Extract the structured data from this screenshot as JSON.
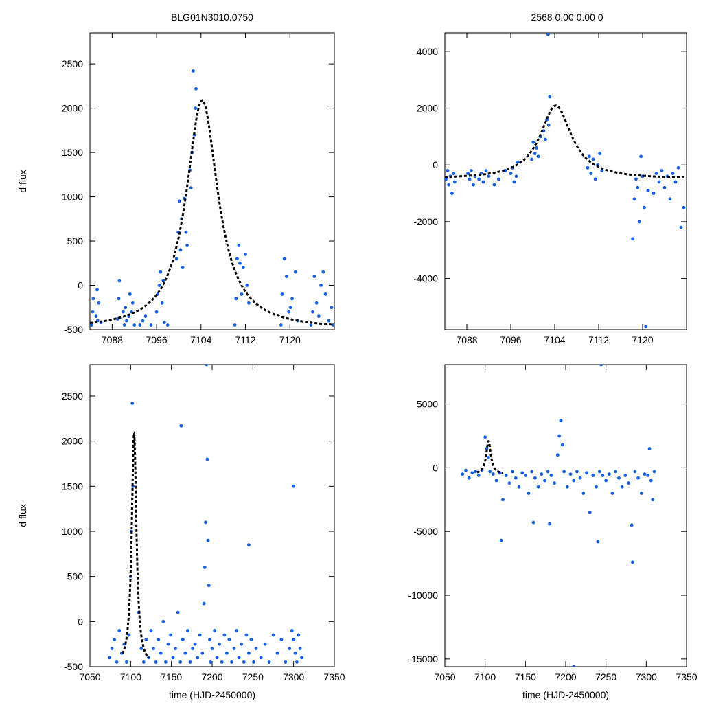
{
  "chart_data": {
    "type": "scatter",
    "point_color": "#1461e6",
    "model_color": "#000000",
    "titles": {
      "left": "BLG01N3010.0750",
      "right": "2568   0.00   0.00   0"
    },
    "model": {
      "t0": 7104.2,
      "peak": 2090,
      "baseline": -500,
      "tau": 3.2
    },
    "panels": [
      {
        "id": "top-left",
        "xlim": [
          7084,
          7128
        ],
        "ylim": [
          -500,
          2850
        ],
        "xticks": [
          7088,
          7096,
          7104,
          7112,
          7120
        ],
        "yticks": [
          -500,
          0,
          500,
          1000,
          1500,
          2000,
          2500
        ],
        "ylabel": "d flux",
        "xlabel": "",
        "x": [
          7084.3,
          7084.5,
          7084.6,
          7085.1,
          7085.3,
          7085.4,
          7085.6,
          7086.0,
          7089.0,
          7089.2,
          7089.3,
          7090.0,
          7090.2,
          7090.4,
          7090.6,
          7091.0,
          7091.2,
          7091.5,
          7091.7,
          7092.0,
          7093.0,
          7093.5,
          7094.0,
          7095.0,
          7096.0,
          7096.2,
          7096.5,
          7096.7,
          7097.0,
          7097.2,
          7097.4,
          7098.0,
          7099.6,
          7099.9,
          7100.1,
          7100.3,
          7100.5,
          7100.7,
          7101.0,
          7101.3,
          7101.5,
          7102.0,
          7102.2,
          7102.4,
          7102.6,
          7102.8,
          7103.0,
          7103.1,
          7110.1,
          7110.3,
          7110.5,
          7110.8,
          7111.0,
          7111.3,
          7111.6,
          7112.0,
          7112.3,
          7112.6,
          7118.4,
          7118.6,
          7119.0,
          7119.4,
          7119.8,
          7120.1,
          7120.4,
          7121.0,
          7121.4,
          7123.8,
          7124.1,
          7124.4,
          7124.8,
          7125.2,
          7125.6,
          7126.0,
          7126.4,
          7127.0,
          7127.5,
          7127.8
        ],
        "y": [
          -450,
          -300,
          -150,
          -350,
          -50,
          -400,
          -200,
          -420,
          -380,
          -150,
          50,
          -300,
          -450,
          -250,
          -400,
          -350,
          -100,
          -300,
          -200,
          -450,
          -450,
          -400,
          -350,
          -450,
          -300,
          -100,
          0,
          150,
          -200,
          50,
          -420,
          -450,
          300,
          600,
          950,
          400,
          750,
          200,
          980,
          600,
          450,
          1300,
          1100,
          1500,
          2420,
          1700,
          2000,
          2220,
          -450,
          -150,
          300,
          450,
          250,
          -100,
          200,
          350,
          0,
          -200,
          -450,
          -100,
          300,
          100,
          -300,
          -250,
          -150,
          150,
          -400,
          -450,
          -300,
          100,
          -200,
          -350,
          0,
          150,
          -100,
          -400,
          -250,
          -450
        ]
      },
      {
        "id": "top-right",
        "xlim": [
          7084,
          7128
        ],
        "ylim": [
          -5800,
          4650
        ],
        "xticks": [
          7088,
          7096,
          7104,
          7112,
          7120
        ],
        "yticks": [
          -4000,
          -2000,
          0,
          2000,
          4000
        ],
        "ylabel": "",
        "xlabel": "",
        "x": [
          7084.2,
          7084.5,
          7084.7,
          7085.0,
          7085.3,
          7085.6,
          7085.8,
          7088.2,
          7088.5,
          7088.8,
          7089.2,
          7089.5,
          7090.2,
          7090.6,
          7091.0,
          7091.5,
          7092.0,
          7093.0,
          7093.8,
          7095.0,
          7096.0,
          7096.3,
          7096.6,
          7097.0,
          7097.3,
          7099.8,
          7100.1,
          7100.4,
          7100.7,
          7101.0,
          7101.4,
          7102.0,
          7102.3,
          7102.6,
          7102.9,
          7103.1,
          7102.8,
          7110.0,
          7110.3,
          7110.6,
          7111.0,
          7111.4,
          7111.8,
          7112.2,
          7112.6,
          7118.2,
          7118.5,
          7118.8,
          7119.1,
          7119.4,
          7119.7,
          7120.0,
          7120.3,
          7120.6,
          7121.0,
          7122.0,
          7122.5,
          7123.0,
          7123.5,
          7124.0,
          7124.5,
          7125.0,
          7125.5,
          7126.0,
          7126.5,
          7127.0,
          7127.5
        ],
        "y": [
          -500,
          -200,
          -700,
          -400,
          -1000,
          -300,
          -600,
          -300,
          -500,
          -200,
          -700,
          -400,
          -500,
          -300,
          -600,
          -200,
          -400,
          -700,
          -500,
          -200,
          -300,
          -100,
          -600,
          -400,
          100,
          200,
          800,
          400,
          600,
          300,
          1000,
          1200,
          900,
          1600,
          1400,
          2400,
          4600,
          -100,
          300,
          -300,
          200,
          -500,
          0,
          400,
          -200,
          -2600,
          -1200,
          -500,
          -800,
          -2000,
          300,
          -400,
          -1500,
          -5700,
          -900,
          -1000,
          -300,
          -600,
          -200,
          -800,
          -400,
          -1200,
          -300,
          -600,
          -100,
          -2200,
          -1500
        ]
      },
      {
        "id": "bottom-left",
        "xlim": [
          7050,
          7350
        ],
        "ylim": [
          -500,
          2850
        ],
        "xticks": [
          7050,
          7100,
          7150,
          7200,
          7250,
          7300,
          7350
        ],
        "yticks": [
          -500,
          0,
          500,
          1000,
          1500,
          2000,
          2500
        ],
        "ylabel": "d flux",
        "xlabel": "time (HJD-2450000)",
        "x": [
          7074,
          7077,
          7080,
          7083,
          7086,
          7089,
          7092,
          7095,
          7098,
          7100,
          7101,
          7102,
          7103,
          7110,
          7113,
          7116,
          7119,
          7122,
          7125,
          7128,
          7131,
          7134,
          7137,
          7140,
          7143,
          7146,
          7149,
          7152,
          7155,
          7158,
          7161,
          7164,
          7167,
          7170,
          7173,
          7176,
          7179,
          7182,
          7185,
          7188,
          7190,
          7191,
          7192,
          7193,
          7194,
          7195,
          7196,
          7197,
          7198,
          7200,
          7203,
          7206,
          7209,
          7212,
          7215,
          7218,
          7221,
          7224,
          7227,
          7230,
          7233,
          7236,
          7239,
          7242,
          7245,
          7248,
          7251,
          7254,
          7260,
          7265,
          7270,
          7275,
          7280,
          7285,
          7290,
          7295,
          7298,
          7300,
          7302,
          7304,
          7306,
          7308,
          7310,
          7162,
          7245,
          7300
        ],
        "y": [
          -400,
          -300,
          -200,
          -450,
          -100,
          -350,
          -250,
          -450,
          -150,
          500,
          1000,
          2420,
          1500,
          100,
          -300,
          -450,
          -200,
          -400,
          -100,
          -300,
          -450,
          -200,
          -350,
          0,
          -450,
          -250,
          -150,
          -400,
          -300,
          100,
          -450,
          -200,
          -350,
          -100,
          -450,
          -300,
          -250,
          -400,
          -150,
          -350,
          200,
          600,
          1100,
          2850,
          1800,
          900,
          400,
          -200,
          -450,
          -300,
          -100,
          -400,
          -250,
          -450,
          -150,
          -350,
          -200,
          -450,
          -300,
          -100,
          -400,
          -250,
          -450,
          -150,
          -350,
          -200,
          -450,
          -300,
          -400,
          -250,
          -450,
          -150,
          -350,
          -200,
          -450,
          -300,
          -100,
          -200,
          -350,
          -450,
          -150,
          -300,
          -400,
          2170,
          850,
          1500
        ]
      },
      {
        "id": "bottom-right",
        "xlim": [
          7050,
          7350
        ],
        "ylim": [
          -15600,
          8100
        ],
        "xticks": [
          7050,
          7100,
          7150,
          7200,
          7250,
          7300,
          7350
        ],
        "yticks": [
          -15000,
          -10000,
          -5000,
          0,
          5000
        ],
        "ylabel": "",
        "xlabel": "time (HJD-2450000)",
        "x": [
          7072,
          7076,
          7080,
          7084,
          7088,
          7092,
          7096,
          7100,
          7102,
          7104,
          7106,
          7110,
          7114,
          7118,
          7122,
          7126,
          7130,
          7134,
          7138,
          7142,
          7146,
          7150,
          7154,
          7158,
          7162,
          7166,
          7170,
          7174,
          7178,
          7182,
          7186,
          7190,
          7192,
          7194,
          7196,
          7198,
          7202,
          7206,
          7210,
          7214,
          7218,
          7222,
          7226,
          7230,
          7234,
          7238,
          7242,
          7244,
          7246,
          7250,
          7254,
          7258,
          7262,
          7266,
          7270,
          7274,
          7278,
          7282,
          7286,
          7290,
          7294,
          7298,
          7302,
          7304,
          7306,
          7308,
          7310,
          7120,
          7160,
          7180,
          7210,
          7240,
          7283
        ],
        "y": [
          -500,
          -200,
          -800,
          -400,
          -300,
          -600,
          -200,
          2400,
          1500,
          800,
          -300,
          -500,
          -1000,
          -400,
          -2500,
          -600,
          -1200,
          -300,
          -800,
          -1500,
          -400,
          -600,
          -2000,
          -300,
          -800,
          -1500,
          -500,
          -1000,
          -300,
          -600,
          -1200,
          1000,
          2500,
          3700,
          1800,
          -300,
          -1500,
          -500,
          -1000,
          -300,
          -800,
          -2000,
          -400,
          -3500,
          -600,
          -1500,
          -300,
          8100,
          -600,
          -1000,
          -500,
          -2000,
          -300,
          -800,
          -1500,
          -600,
          -1200,
          -4500,
          -300,
          -800,
          -2000,
          -500,
          -600,
          1500,
          -1000,
          -2500,
          -300,
          -5700,
          -4300,
          -4400,
          -15600,
          -5800,
          -7400
        ]
      }
    ]
  }
}
